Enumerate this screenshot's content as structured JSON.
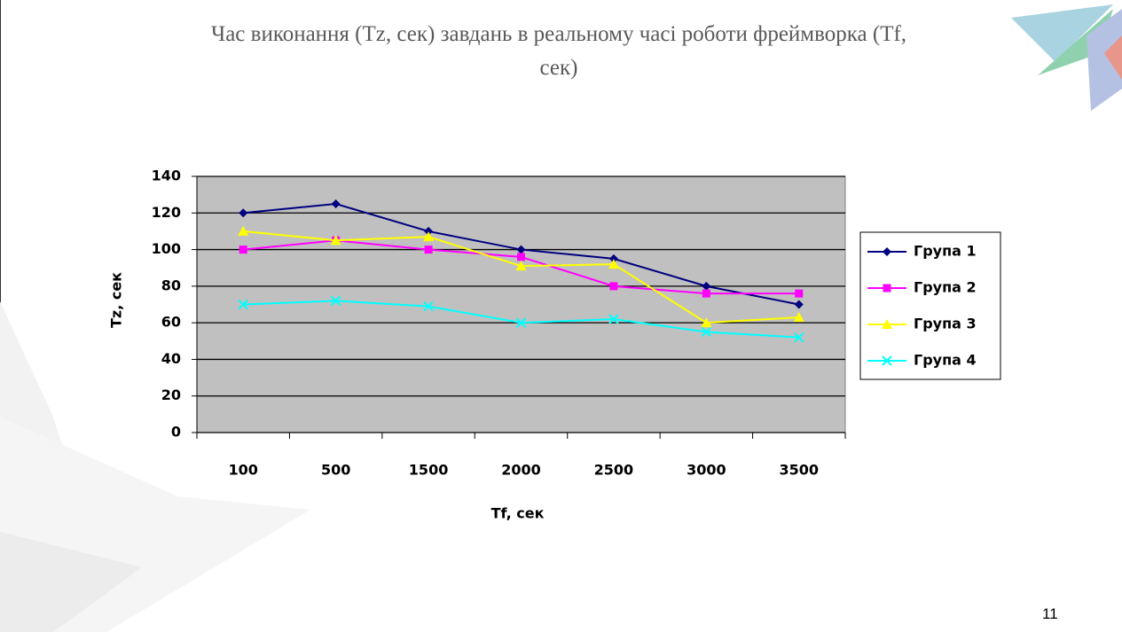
{
  "chart_data": {
    "type": "line",
    "title": "Час виконання (Tz, сек) завдань в реальному часі роботи фреймворка (Tf, сек)",
    "x_label": "Tf, сек",
    "y_label": "Tz, сек",
    "categories": [
      "100",
      "500",
      "1500",
      "2000",
      "2500",
      "3000",
      "3500"
    ],
    "series": [
      {
        "name": "Група 1",
        "color": "#000080",
        "marker": "diamond",
        "values": [
          120,
          125,
          110,
          100,
          95,
          80,
          70
        ]
      },
      {
        "name": "Група 2",
        "color": "#ff00ff",
        "marker": "square",
        "values": [
          100,
          105,
          100,
          96,
          80,
          76,
          76
        ]
      },
      {
        "name": "Група 3",
        "color": "#ffff00",
        "marker": "triangle",
        "values": [
          110,
          105,
          107,
          91,
          92,
          60,
          63
        ]
      },
      {
        "name": "Група 4",
        "color": "#00ffff",
        "marker": "x",
        "values": [
          70,
          72,
          69,
          60,
          62,
          55,
          52
        ]
      }
    ],
    "ylim": [
      0,
      140
    ],
    "yticks": [
      0,
      20,
      40,
      60,
      80,
      100,
      120,
      140
    ],
    "grid": true,
    "legend": "right"
  },
  "page_number": "11"
}
